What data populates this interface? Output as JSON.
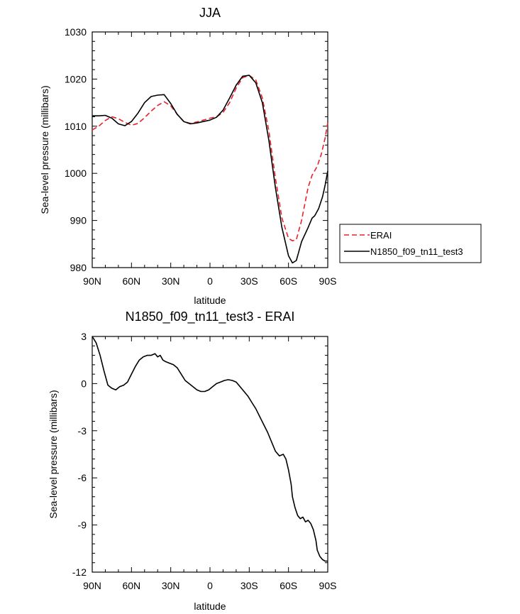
{
  "chart_data": [
    {
      "type": "line",
      "title": "JJA",
      "xlabel": "latitude",
      "ylabel": "Sea-level pressure (millibars)",
      "xlim": [
        -90,
        90
      ],
      "ylim": [
        980,
        1030
      ],
      "x_ticks": [
        -90,
        -60,
        -30,
        0,
        30,
        60,
        90
      ],
      "x_tick_labels": [
        "90N",
        "60N",
        "30N",
        "0",
        "30S",
        "60S",
        "90S"
      ],
      "y_ticks": [
        980,
        990,
        1000,
        1010,
        1020,
        1030
      ],
      "y_tick_labels": [
        "980",
        "990",
        "1000",
        "1010",
        "1020",
        "1030"
      ],
      "legend": {
        "placement": "outside-right"
      },
      "series": [
        {
          "name": "ERAI",
          "color": "#e8212a",
          "dash": "dashed",
          "x": [
            -90,
            -85,
            -80,
            -75,
            -70,
            -65,
            -60,
            -55,
            -50,
            -45,
            -40,
            -35,
            -30,
            -25,
            -20,
            -15,
            -10,
            -5,
            0,
            5,
            10,
            15,
            20,
            25,
            30,
            35,
            40,
            45,
            50,
            55,
            60,
            63,
            66,
            70,
            75,
            78,
            82,
            85,
            88,
            90
          ],
          "values": [
            1009.2,
            1010.0,
            1011.2,
            1012.0,
            1011.6,
            1010.8,
            1010.2,
            1010.6,
            1011.8,
            1013.2,
            1014.4,
            1015.2,
            1014.3,
            1012.5,
            1011.0,
            1010.6,
            1010.9,
            1011.3,
            1011.7,
            1012.0,
            1012.9,
            1015.0,
            1018.1,
            1020.3,
            1020.8,
            1019.8,
            1016.0,
            1009.0,
            999.0,
            990.5,
            986.2,
            985.7,
            985.9,
            990.0,
            997.0,
            999.6,
            1001.5,
            1004.0,
            1007.5,
            1010.8
          ]
        },
        {
          "name": "N1850_f09_tn11_test3",
          "color": "#000000",
          "dash": "solid",
          "x": [
            -90,
            -85,
            -80,
            -75,
            -70,
            -65,
            -60,
            -55,
            -50,
            -45,
            -40,
            -35,
            -30,
            -25,
            -20,
            -15,
            -10,
            -5,
            0,
            5,
            10,
            15,
            20,
            25,
            30,
            35,
            40,
            45,
            50,
            55,
            60,
            63,
            66,
            68,
            70,
            75,
            78,
            80,
            83,
            86,
            88,
            90
          ],
          "values": [
            1012.2,
            1012.2,
            1012.3,
            1011.7,
            1010.5,
            1010.1,
            1011.0,
            1012.8,
            1015.0,
            1016.3,
            1016.6,
            1016.7,
            1014.8,
            1012.5,
            1011.0,
            1010.5,
            1010.7,
            1011.0,
            1011.3,
            1011.9,
            1013.4,
            1016.0,
            1018.7,
            1020.6,
            1020.8,
            1019.2,
            1015.0,
            1007.0,
            997.0,
            988.5,
            982.5,
            981.0,
            981.5,
            983.5,
            985.5,
            988.5,
            990.5,
            991.0,
            992.5,
            995.0,
            997.5,
            1000.5
          ]
        }
      ]
    },
    {
      "type": "line",
      "title": "N1850_f09_tn11_test3 - ERAI",
      "xlabel": "latitude",
      "ylabel": "Sea-level pressure (millibars)",
      "xlim": [
        -90,
        90
      ],
      "ylim": [
        -12,
        3
      ],
      "x_ticks": [
        -90,
        -60,
        -30,
        0,
        30,
        60,
        90
      ],
      "x_tick_labels": [
        "90N",
        "60N",
        "30N",
        "0",
        "30S",
        "60S",
        "90S"
      ],
      "y_ticks": [
        -12,
        -9,
        -6,
        -3,
        0,
        3
      ],
      "y_tick_labels": [
        "-12",
        "-9",
        "-6",
        "-3",
        "0",
        "3"
      ],
      "series": [
        {
          "name": "N1850_f09_tn11_test3 - ERAI",
          "color": "#000000",
          "dash": "solid",
          "x": [
            -90,
            -87,
            -84,
            -81,
            -78,
            -75,
            -72,
            -69,
            -66,
            -63,
            -60,
            -57,
            -54,
            -51,
            -48,
            -45,
            -42,
            -40,
            -38,
            -36,
            -34,
            -31,
            -28,
            -25,
            -22,
            -19,
            -16,
            -13,
            -10,
            -7,
            -4,
            -1,
            2,
            5,
            8,
            11,
            14,
            17,
            20,
            23,
            26,
            29,
            32,
            35,
            38,
            41,
            44,
            47,
            50,
            53,
            56,
            58,
            60,
            62,
            63,
            65,
            67,
            69,
            71,
            73,
            75,
            77,
            79,
            81,
            82,
            84,
            86,
            88,
            90
          ],
          "values": [
            3.0,
            2.6,
            1.8,
            0.8,
            -0.1,
            -0.3,
            -0.4,
            -0.2,
            -0.1,
            0.1,
            0.6,
            1.1,
            1.5,
            1.7,
            1.8,
            1.8,
            1.9,
            1.7,
            1.8,
            1.5,
            1.4,
            1.3,
            1.2,
            1.0,
            0.6,
            0.2,
            0.0,
            -0.2,
            -0.4,
            -0.5,
            -0.5,
            -0.4,
            -0.2,
            0.0,
            0.1,
            0.2,
            0.25,
            0.2,
            0.1,
            -0.2,
            -0.5,
            -0.8,
            -1.2,
            -1.6,
            -2.1,
            -2.6,
            -3.1,
            -3.7,
            -4.3,
            -4.6,
            -4.5,
            -4.8,
            -5.5,
            -6.4,
            -7.2,
            -7.9,
            -8.4,
            -8.6,
            -8.5,
            -8.8,
            -8.7,
            -8.9,
            -9.3,
            -10.0,
            -10.6,
            -11.0,
            -11.2,
            -11.3,
            -11.3
          ]
        }
      ]
    }
  ]
}
